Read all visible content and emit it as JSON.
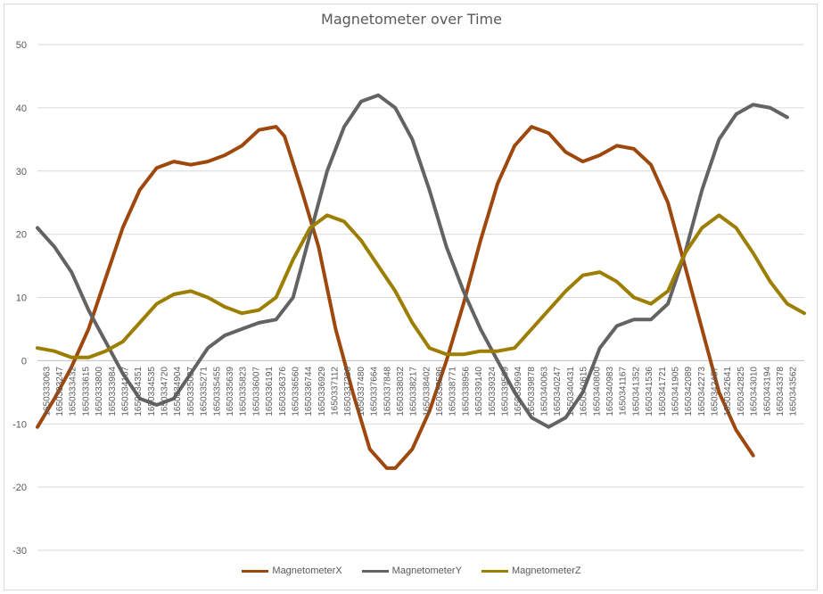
{
  "chart_data": {
    "type": "line",
    "title": "Magnetometer over Time",
    "xlabel": "",
    "ylabel": "",
    "ylim": [
      -30,
      50
    ],
    "yticks": [
      50,
      40,
      30,
      20,
      10,
      0,
      -10,
      -20,
      -30
    ],
    "grid": true,
    "legend_position": "bottom",
    "x_tick_labels": [
      "1650333063",
      "1650333247",
      "1650333432",
      "1650333615",
      "1650333800",
      "1650333984",
      "1650334167",
      "1650334351",
      "1650334535",
      "1650334720",
      "1650334904",
      "1650335087",
      "1650335271",
      "1650335455",
      "1650335639",
      "1650335823",
      "1650336007",
      "1650336191",
      "1650336376",
      "1650336560",
      "1650336744",
      "1650336929",
      "1650337112",
      "1650337296",
      "1650337480",
      "1650337664",
      "1650337848",
      "1650338032",
      "1650338217",
      "1650338402",
      "1650338586",
      "1650338771",
      "1650338956",
      "1650339140",
      "1650339324",
      "1650339509",
      "1650339694",
      "1650339878",
      "1650340063",
      "1650340247",
      "1650340431",
      "1650340615",
      "1650340800",
      "1650340983",
      "1650341167",
      "1650341352",
      "1650341536",
      "1650341721",
      "1650341905",
      "1650342089",
      "1650342273",
      "1650342457",
      "1650342641",
      "1650342825",
      "1650343010",
      "1650343194",
      "1650343378",
      "1650343562"
    ],
    "series": [
      {
        "name": "MagnetometerX",
        "color": "#9E480E",
        "points": [
          [
            0,
            -10.5
          ],
          [
            2,
            -6
          ],
          [
            4,
            -1
          ],
          [
            6,
            5
          ],
          [
            8,
            13
          ],
          [
            10,
            21
          ],
          [
            12,
            27
          ],
          [
            14,
            30.5
          ],
          [
            16,
            31.5
          ],
          [
            18,
            31
          ],
          [
            20,
            31.5
          ],
          [
            22,
            32.5
          ],
          [
            24,
            34
          ],
          [
            26,
            36.5
          ],
          [
            28,
            37
          ],
          [
            29,
            35.5
          ],
          [
            31,
            27
          ],
          [
            33,
            18
          ],
          [
            35,
            5
          ],
          [
            37,
            -5
          ],
          [
            39,
            -14
          ],
          [
            41,
            -17
          ],
          [
            42,
            -17
          ],
          [
            44,
            -14
          ],
          [
            46,
            -8
          ],
          [
            48,
            0
          ],
          [
            50,
            9
          ],
          [
            52,
            19
          ],
          [
            54,
            28
          ],
          [
            56,
            34
          ],
          [
            58,
            37
          ],
          [
            60,
            36
          ],
          [
            62,
            33
          ],
          [
            64,
            31.5
          ],
          [
            66,
            32.5
          ],
          [
            68,
            34
          ],
          [
            70,
            33.5
          ],
          [
            72,
            31
          ],
          [
            74,
            25
          ],
          [
            76,
            15
          ],
          [
            78,
            5
          ],
          [
            80,
            -5
          ],
          [
            82,
            -11
          ],
          [
            84,
            -15
          ]
        ]
      },
      {
        "name": "MagnetometerY",
        "color": "#636363",
        "points": [
          [
            0,
            21
          ],
          [
            2,
            18
          ],
          [
            4,
            14
          ],
          [
            6,
            8
          ],
          [
            8,
            3
          ],
          [
            10,
            -2
          ],
          [
            12,
            -6
          ],
          [
            14,
            -7
          ],
          [
            16,
            -6
          ],
          [
            18,
            -2
          ],
          [
            20,
            2
          ],
          [
            22,
            4
          ],
          [
            24,
            5
          ],
          [
            26,
            6
          ],
          [
            28,
            6.5
          ],
          [
            30,
            10
          ],
          [
            32,
            20
          ],
          [
            34,
            30
          ],
          [
            36,
            37
          ],
          [
            38,
            41
          ],
          [
            40,
            42
          ],
          [
            42,
            40
          ],
          [
            44,
            35
          ],
          [
            46,
            27
          ],
          [
            48,
            18
          ],
          [
            50,
            11
          ],
          [
            52,
            5
          ],
          [
            54,
            0
          ],
          [
            56,
            -5
          ],
          [
            58,
            -9
          ],
          [
            60,
            -10.5
          ],
          [
            62,
            -9
          ],
          [
            64,
            -5
          ],
          [
            66,
            2
          ],
          [
            68,
            5.5
          ],
          [
            70,
            6.5
          ],
          [
            72,
            6.5
          ],
          [
            74,
            9
          ],
          [
            76,
            17
          ],
          [
            78,
            27
          ],
          [
            80,
            35
          ],
          [
            82,
            39
          ],
          [
            84,
            40.5
          ],
          [
            86,
            40
          ],
          [
            88,
            38.5
          ]
        ]
      },
      {
        "name": "MagnetometerZ",
        "color": "#9C7E00",
        "points": [
          [
            0,
            2
          ],
          [
            2,
            1.5
          ],
          [
            4,
            0.5
          ],
          [
            6,
            0.5
          ],
          [
            8,
            1.5
          ],
          [
            10,
            3
          ],
          [
            12,
            6
          ],
          [
            14,
            9
          ],
          [
            16,
            10.5
          ],
          [
            18,
            11
          ],
          [
            20,
            10
          ],
          [
            22,
            8.5
          ],
          [
            24,
            7.5
          ],
          [
            26,
            8
          ],
          [
            28,
            10
          ],
          [
            30,
            16
          ],
          [
            32,
            21
          ],
          [
            34,
            23
          ],
          [
            36,
            22
          ],
          [
            38,
            19
          ],
          [
            40,
            15
          ],
          [
            42,
            11
          ],
          [
            44,
            6
          ],
          [
            46,
            2
          ],
          [
            48,
            1
          ],
          [
            50,
            1
          ],
          [
            52,
            1.5
          ],
          [
            54,
            1.5
          ],
          [
            56,
            2
          ],
          [
            58,
            5
          ],
          [
            60,
            8
          ],
          [
            62,
            11
          ],
          [
            64,
            13.5
          ],
          [
            66,
            14
          ],
          [
            68,
            12.5
          ],
          [
            70,
            10
          ],
          [
            72,
            9
          ],
          [
            74,
            11
          ],
          [
            76,
            17
          ],
          [
            78,
            21
          ],
          [
            80,
            23
          ],
          [
            82,
            21
          ],
          [
            84,
            17
          ],
          [
            86,
            12.5
          ],
          [
            88,
            9
          ],
          [
            90,
            7.5
          ]
        ]
      }
    ]
  }
}
